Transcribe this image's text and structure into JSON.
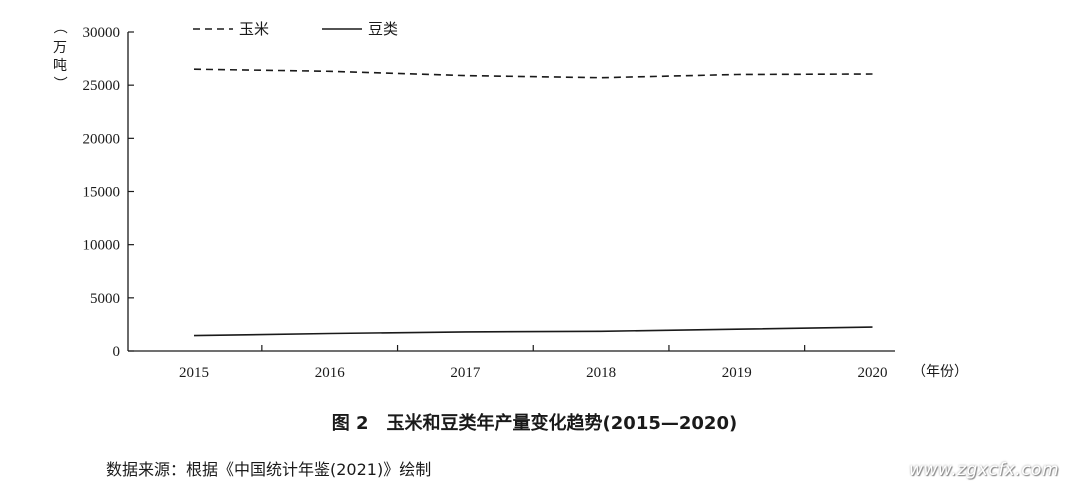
{
  "chart_data": {
    "type": "line",
    "x": [
      "2015",
      "2016",
      "2017",
      "2018",
      "2019",
      "2020"
    ],
    "series": [
      {
        "name": "玉米",
        "style": "dashed",
        "color": "#1a1a1a",
        "values": [
          26500,
          26300,
          25900,
          25700,
          26000,
          26050
        ]
      },
      {
        "name": "豆类",
        "style": "solid",
        "color": "#1a1a1a",
        "values": [
          1450,
          1650,
          1800,
          1850,
          2050,
          2250
        ]
      }
    ],
    "ylim": [
      0,
      30000
    ],
    "yticks": [
      "0",
      "5000",
      "10000",
      "15000",
      "20000",
      "25000",
      "30000"
    ],
    "ylabel": "（万吨）",
    "xlabel": "（年份）",
    "legend_position": "top-left",
    "grid": false
  },
  "caption": "图 2　玉米和豆类年产量变化趋势(2015—2020)",
  "source": "数据来源：根据《中国统计年鉴(2021)》绘制",
  "watermark": "www.zgxcfx.com"
}
